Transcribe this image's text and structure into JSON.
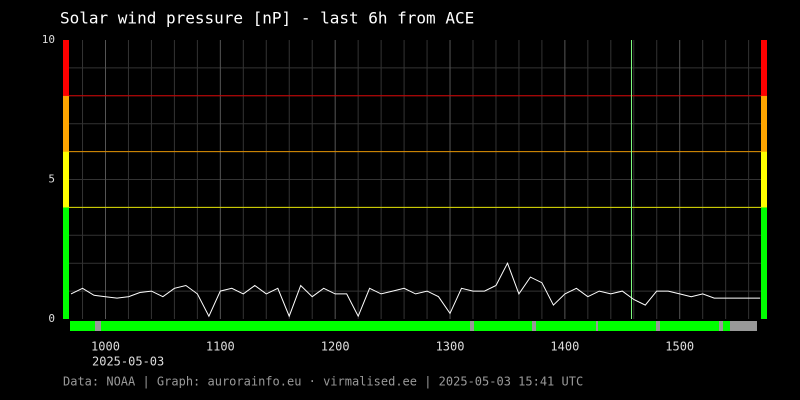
{
  "chart_data": {
    "type": "line",
    "title": "Solar wind pressure [nP] - last 6h from ACE",
    "date_label": "2025-05-03",
    "footer": "Data: NOAA | Graph: aurorainfo.eu · virmalised.ee | 2025-05-03 15:41 UTC",
    "x": [
      9.7,
      9.8,
      9.9,
      10.0,
      10.1,
      10.2,
      10.3,
      10.4,
      10.5,
      10.6,
      10.7,
      10.8,
      10.9,
      11.0,
      11.1,
      11.2,
      11.3,
      11.4,
      11.5,
      11.6,
      11.7,
      11.8,
      11.9,
      12.0,
      12.1,
      12.2,
      12.3,
      12.4,
      12.5,
      12.6,
      12.7,
      12.8,
      12.9,
      13.0,
      13.1,
      13.2,
      13.3,
      13.4,
      13.5,
      13.6,
      13.7,
      13.8,
      13.9,
      14.0,
      14.1,
      14.2,
      14.3,
      14.4,
      14.5,
      14.6,
      14.7,
      14.8,
      14.9,
      15.0,
      15.1,
      15.2,
      15.3,
      15.4,
      15.5,
      15.6,
      15.7
    ],
    "series": [
      {
        "name": "pressure",
        "color": "#ffffff",
        "values": [
          0.9,
          1.1,
          0.85,
          0.8,
          0.75,
          0.8,
          0.95,
          1.0,
          0.8,
          1.1,
          1.2,
          0.9,
          0.1,
          1.0,
          1.1,
          0.9,
          1.2,
          0.9,
          1.1,
          0.1,
          1.2,
          0.8,
          1.1,
          0.9,
          0.9,
          0.1,
          1.1,
          0.9,
          1.0,
          1.1,
          0.9,
          1.0,
          0.8,
          0.2,
          1.1,
          1.0,
          1.0,
          1.2,
          2.0,
          0.9,
          1.5,
          1.3,
          0.5,
          0.9,
          1.1,
          0.8,
          1.0,
          0.9,
          1.0,
          0.7,
          0.5,
          1.0,
          1.0,
          0.9,
          0.8,
          0.9,
          0.75,
          0.75,
          0.75,
          0.75,
          0.75
        ]
      }
    ],
    "xlim": [
      9.63,
      15.76
    ],
    "xticks": [
      {
        "value": 10,
        "label": "1000"
      },
      {
        "value": 11,
        "label": "1100"
      },
      {
        "value": 12,
        "label": "1200"
      },
      {
        "value": 13,
        "label": "1300"
      },
      {
        "value": 14,
        "label": "1400"
      },
      {
        "value": 15,
        "label": "1500"
      }
    ],
    "xminorticks": [
      9.8,
      10.2,
      10.4,
      10.6,
      10.8,
      11.2,
      11.4,
      11.6,
      11.8,
      12.2,
      12.4,
      12.6,
      12.8,
      13.2,
      13.4,
      13.6,
      13.8,
      14.2,
      14.4,
      14.6,
      14.8,
      15.2,
      15.4,
      15.6
    ],
    "ylim": [
      0,
      10
    ],
    "yticks": [
      0,
      5,
      10
    ],
    "yminorticks": [
      1,
      2,
      3,
      4,
      5,
      6,
      7,
      8,
      9
    ],
    "bands": [
      {
        "from": 0,
        "to": 4,
        "color": "#00ff00"
      },
      {
        "from": 4,
        "to": 6,
        "color": "#ffff00"
      },
      {
        "from": 6,
        "to": 8,
        "color": "#ffa500"
      },
      {
        "from": 8,
        "to": 10,
        "color": "#ff0000"
      }
    ],
    "thresholds": [
      {
        "value": 4,
        "color": "#e0e000"
      },
      {
        "value": 6,
        "color": "#e09000"
      },
      {
        "value": 8,
        "color": "#d00000"
      }
    ],
    "marker_x": {
      "value": 14.58,
      "color": "#80ff80"
    },
    "grid": true
  }
}
